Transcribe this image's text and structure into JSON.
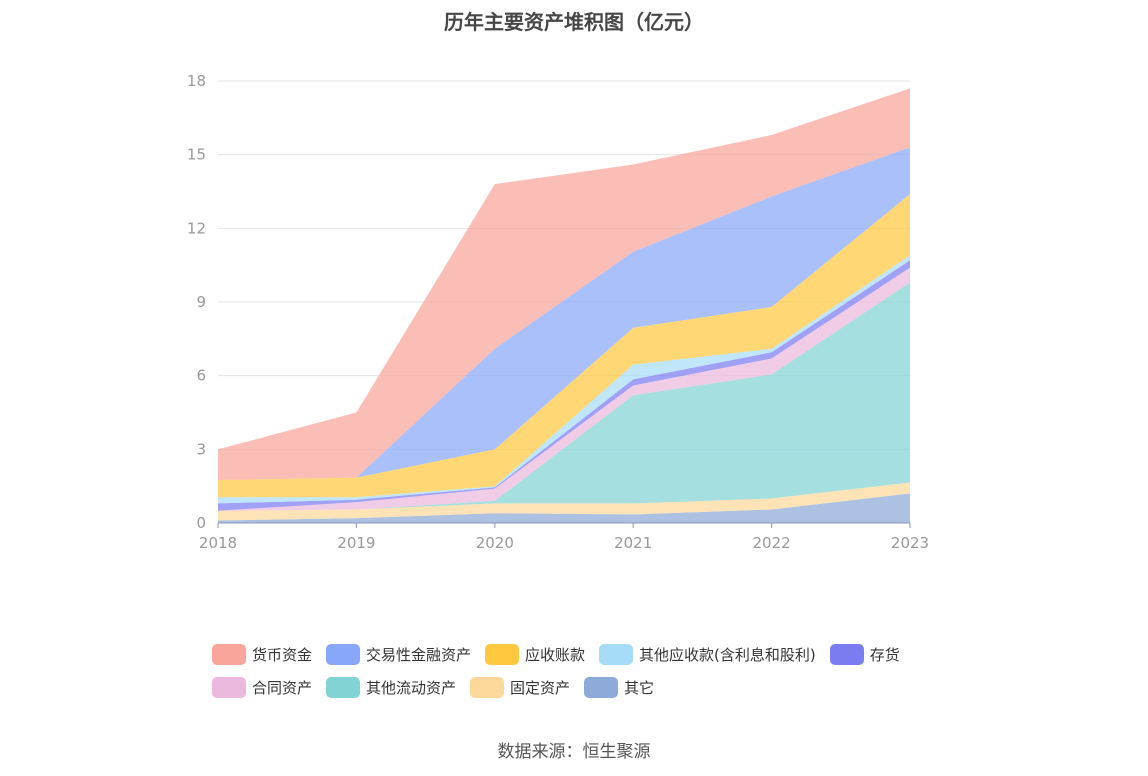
{
  "chart_data": {
    "type": "area",
    "stacked": true,
    "title": "历年主要资产堆积图（亿元）",
    "x": [
      "2018",
      "2019",
      "2020",
      "2021",
      "2022",
      "2023"
    ],
    "ylim": [
      0,
      18
    ],
    "yticks": [
      "0",
      "3",
      "6",
      "9",
      "12",
      "15",
      "18"
    ],
    "grid": true,
    "legend_position": "bottom",
    "series": [
      {
        "name": "其它",
        "color": "#8eaad8",
        "values": [
          0.1,
          0.2,
          0.4,
          0.35,
          0.55,
          1.2
        ]
      },
      {
        "name": "固定资产",
        "color": "#fcd89a",
        "values": [
          0.4,
          0.35,
          0.4,
          0.45,
          0.45,
          0.45
        ]
      },
      {
        "name": "其他流动资产",
        "color": "#82d3d4",
        "values": [
          0.0,
          0.0,
          0.1,
          4.4,
          5.05,
          8.15
        ]
      },
      {
        "name": "合同资产",
        "color": "#ebb8de",
        "values": [
          0.0,
          0.3,
          0.5,
          0.4,
          0.65,
          0.6
        ]
      },
      {
        "name": "存货",
        "color": "#7b7cf0",
        "values": [
          0.3,
          0.1,
          0.05,
          0.25,
          0.25,
          0.3
        ]
      },
      {
        "name": "其他应收款(含利息和股利)",
        "color": "#a6dcf7",
        "values": [
          0.25,
          0.1,
          0.05,
          0.6,
          0.15,
          0.2
        ]
      },
      {
        "name": "应收账款",
        "color": "#ffc83f",
        "values": [
          0.7,
          0.8,
          1.5,
          1.5,
          1.7,
          2.5
        ]
      },
      {
        "name": "交易性金融资产",
        "color": "#89a7fa",
        "values": [
          0.0,
          0.0,
          4.1,
          3.1,
          4.5,
          1.9
        ]
      },
      {
        "name": "货币资金",
        "color": "#f9a59b",
        "values": [
          1.25,
          2.65,
          6.7,
          3.55,
          2.5,
          2.4
        ]
      }
    ]
  },
  "legend": {
    "rows": [
      [
        "货币资金",
        "交易性金融资产",
        "应收账款",
        "其他应收款(含利息和股利)",
        "存货"
      ],
      [
        "合同资产",
        "其他流动资产",
        "固定资产",
        "其它"
      ]
    ]
  },
  "source": "数据来源：恒生聚源"
}
